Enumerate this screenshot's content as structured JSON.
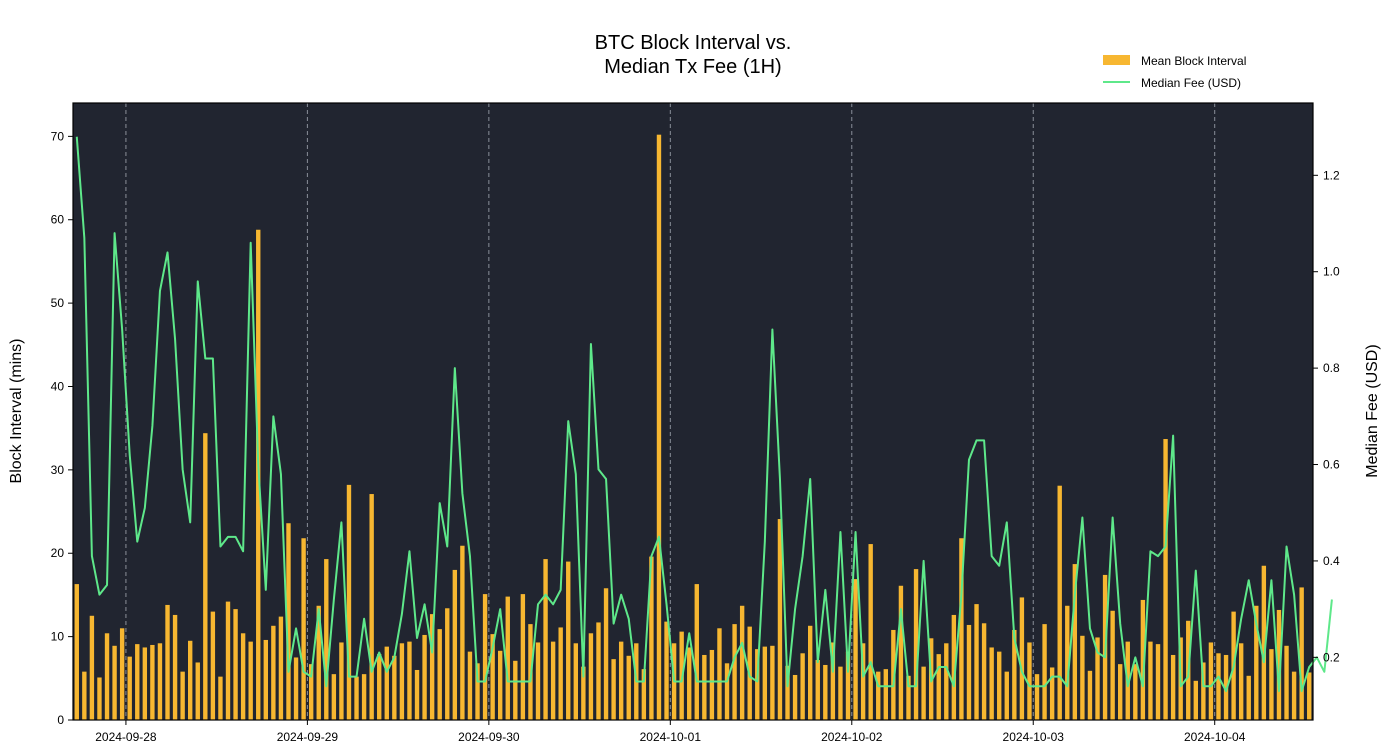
{
  "chart_data": {
    "type": "bar+line",
    "title_lines": [
      "BTC Block Interval vs.",
      "Median Tx Fee (1H)"
    ],
    "ylabel_left": "Block Interval (mins)",
    "ylabel_right": "Median Fee (USD)",
    "x_tick_labels": [
      "2024-09-28",
      "2024-09-29",
      "2024-09-30",
      "2024-10-01",
      "2024-10-02",
      "2024-10-03",
      "2024-10-04"
    ],
    "x_start": "2024-09-27 17:00",
    "x_interval_hours": 1,
    "ylim_left": [
      0,
      74
    ],
    "y_ticks_left": [
      0,
      10,
      20,
      30,
      40,
      50,
      60,
      70
    ],
    "ylim_right": [
      0.07,
      1.35
    ],
    "y_ticks_right": [
      "0.2",
      "0.4",
      "0.6",
      "0.8",
      "1.0",
      "1.2"
    ],
    "grid": "vertical dashed at day boundaries",
    "legend_position": "top-right",
    "background_color": "#212530",
    "series": [
      {
        "name": "Mean Block Interval",
        "kind": "bar",
        "axis": "left",
        "color": "#f7b731",
        "values": [
          16.3,
          5.8,
          12.5,
          5.1,
          10.4,
          8.9,
          11,
          7.6,
          9.1,
          8.7,
          9,
          9.2,
          13.8,
          12.6,
          5.8,
          9.5,
          6.9,
          34.4,
          13,
          5.2,
          14.2,
          13.3,
          10.4,
          9.4,
          58.8,
          9.6,
          11.3,
          12.4,
          23.6,
          7.5,
          21.8,
          6.7,
          13.7,
          19.3,
          5.5,
          9.3,
          28.2,
          5.2,
          5.5,
          27.1,
          7.9,
          8.8,
          7.7,
          9.2,
          9.4,
          6,
          10.2,
          12.7,
          10.9,
          13.4,
          18,
          20.9,
          8.2,
          6.8,
          15.1,
          10.3,
          8.3,
          14.8,
          7.1,
          15.1,
          11.5,
          9.3,
          19.3,
          9.4,
          11.1,
          19,
          9.2,
          6.4,
          10.4,
          11.7,
          15.8,
          7.3,
          9.4,
          7.7,
          9.2,
          6.1,
          19.6,
          70.2,
          11.8,
          9.2,
          10.6,
          8.7,
          16.3,
          7.8,
          8.4,
          11,
          6.8,
          11.5,
          13.7,
          11.2,
          8.5,
          8.8,
          8.9,
          24.1,
          6.5,
          5.4,
          8,
          11.3,
          7.2,
          6.6,
          9.3,
          6.4,
          8.2,
          16.9,
          9.2,
          21.1,
          5.8,
          6.1,
          10.8,
          16.1,
          5.3,
          18.1,
          6.4,
          9.8,
          7.9,
          9.2,
          12.6,
          21.8,
          11.4,
          13.9,
          11.6,
          8.7,
          8.2,
          5.8,
          10.8,
          14.7,
          9.3,
          5.5,
          11.5,
          6.3,
          28.1,
          13.7,
          18.7,
          10.1,
          5.9,
          9.9,
          17.4,
          13.1,
          6.7,
          9.4,
          6.7,
          14.4,
          9.4,
          9.1,
          33.7,
          7.8,
          9.9,
          11.9,
          4.7,
          6.9,
          9.3,
          8,
          7.8,
          13,
          9.2,
          5.3,
          13.7,
          18.5,
          8.5,
          13.2,
          8.9,
          5.8,
          15.9,
          5.7
        ]
      },
      {
        "name": "Median Fee (USD)",
        "kind": "line",
        "axis": "right",
        "color": "#5ee88a",
        "values": [
          1.28,
          1.07,
          0.41,
          0.33,
          0.35,
          1.08,
          0.88,
          0.62,
          0.44,
          0.51,
          0.68,
          0.96,
          1.04,
          0.86,
          0.59,
          0.48,
          0.98,
          0.82,
          0.82,
          0.43,
          0.45,
          0.45,
          0.42,
          1.06,
          0.6,
          0.34,
          0.7,
          0.58,
          0.17,
          0.26,
          0.17,
          0.16,
          0.3,
          0.14,
          0.32,
          0.48,
          0.16,
          0.16,
          0.28,
          0.17,
          0.21,
          0.17,
          0.2,
          0.29,
          0.42,
          0.24,
          0.31,
          0.21,
          0.52,
          0.43,
          0.8,
          0.54,
          0.41,
          0.15,
          0.15,
          0.22,
          0.3,
          0.15,
          0.15,
          0.15,
          0.15,
          0.31,
          0.33,
          0.31,
          0.34,
          0.69,
          0.58,
          0.16,
          0.85,
          0.59,
          0.57,
          0.27,
          0.33,
          0.28,
          0.15,
          0.15,
          0.41,
          0.45,
          0.31,
          0.15,
          0.15,
          0.25,
          0.15,
          0.15,
          0.15,
          0.15,
          0.15,
          0.2,
          0.23,
          0.16,
          0.15,
          0.44,
          0.88,
          0.57,
          0.14,
          0.3,
          0.41,
          0.57,
          0.19,
          0.34,
          0.17,
          0.46,
          0.17,
          0.46,
          0.16,
          0.19,
          0.14,
          0.14,
          0.14,
          0.3,
          0.14,
          0.14,
          0.4,
          0.15,
          0.18,
          0.18,
          0.14,
          0.33,
          0.61,
          0.65,
          0.65,
          0.41,
          0.39,
          0.48,
          0.24,
          0.17,
          0.14,
          0.14,
          0.14,
          0.16,
          0.16,
          0.14,
          0.33,
          0.49,
          0.26,
          0.21,
          0.2,
          0.49,
          0.27,
          0.14,
          0.2,
          0.14,
          0.42,
          0.41,
          0.43,
          0.66,
          0.14,
          0.16,
          0.38,
          0.14,
          0.14,
          0.16,
          0.13,
          0.18,
          0.28,
          0.36,
          0.27,
          0.19,
          0.36,
          0.13,
          0.43,
          0.33,
          0.13,
          0.18,
          0.2,
          0.17,
          0.32
        ]
      }
    ]
  }
}
